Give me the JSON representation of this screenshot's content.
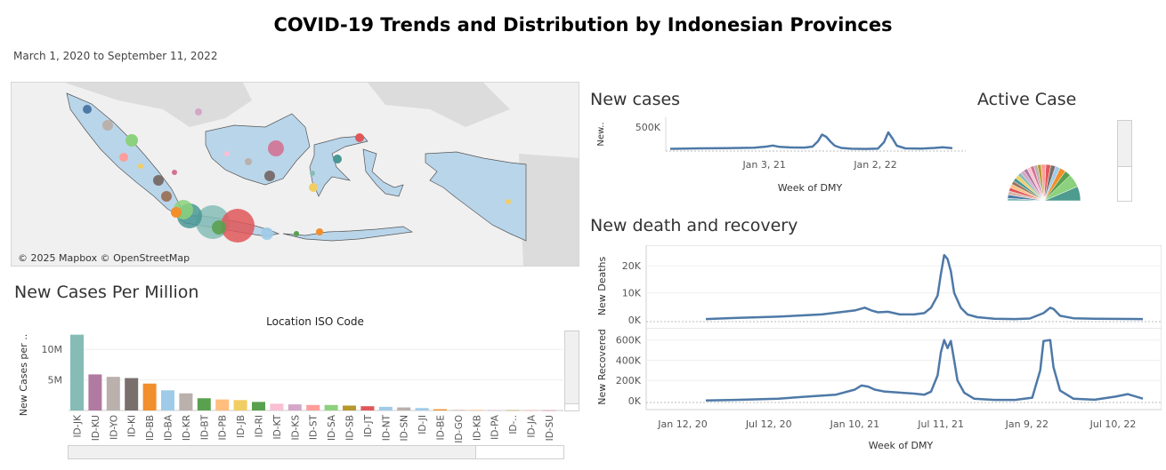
{
  "header": {
    "title": "COVID-19 Trends and Distribution by Indonesian Provinces",
    "date_range": "March 1, 2020 to September 11, 2022"
  },
  "map": {
    "credit": "© 2025 Mapbox © OpenStreetMap",
    "land_color": "#b9d5ea",
    "background_color": "#e6e6e6"
  },
  "sections": {
    "new_cases": "New cases",
    "active_case": "Active Case",
    "new_death_recovery": "New death and recovery",
    "per_million": "New Cases Per Million"
  },
  "chart_data": [
    {
      "id": "new-cases-line",
      "type": "line",
      "title": "New cases",
      "xlabel": "Week of DMY",
      "ylabel": "New..",
      "ylim": [
        0,
        700000
      ],
      "yticks": [
        {
          "value": 500000,
          "label": "500K"
        }
      ],
      "xticks": [
        {
          "x": "2021-01-03",
          "label": "Jan 3, 21"
        },
        {
          "x": "2022-01-02",
          "label": "Jan 2, 22"
        }
      ],
      "color": "#4e79a7",
      "x": [
        "2020-03-01",
        "2020-06-01",
        "2020-09-01",
        "2020-12-01",
        "2021-01-10",
        "2021-01-31",
        "2021-02-21",
        "2021-04-01",
        "2021-05-15",
        "2021-06-10",
        "2021-06-28",
        "2021-07-11",
        "2021-07-25",
        "2021-08-08",
        "2021-08-22",
        "2021-09-12",
        "2021-10-15",
        "2021-12-01",
        "2022-01-10",
        "2022-01-30",
        "2022-02-13",
        "2022-02-27",
        "2022-03-13",
        "2022-04-10",
        "2022-06-01",
        "2022-07-15",
        "2022-08-10",
        "2022-09-11"
      ],
      "values": [
        10000,
        20000,
        25000,
        35000,
        60000,
        85000,
        55000,
        40000,
        38000,
        60000,
        180000,
        330000,
        280000,
        170000,
        80000,
        30000,
        12000,
        8000,
        15000,
        160000,
        380000,
        240000,
        80000,
        20000,
        15000,
        30000,
        45000,
        25000
      ]
    },
    {
      "id": "active-case-pie",
      "type": "pie",
      "title": "Active Case",
      "slices": [
        {
          "label": "ID-JK",
          "value": 12,
          "color": "#4e9b8f"
        },
        {
          "label": "ID-JB",
          "value": 11,
          "color": "#8cd17d"
        },
        {
          "label": "ID-JT",
          "value": 5,
          "color": "#59a14f"
        },
        {
          "label": "ID-JI",
          "value": 5,
          "color": "#f28e2b"
        },
        {
          "label": "ID-KT",
          "value": 4,
          "color": "#a0cbe8"
        },
        {
          "label": "ID-BA",
          "value": 4,
          "color": "#79706e"
        },
        {
          "label": "ID-KI",
          "value": 4,
          "color": "#e15759"
        },
        {
          "label": "ID-SU",
          "value": 4,
          "color": "#ff9d9a"
        },
        {
          "label": "ID-SN",
          "value": 3,
          "color": "#b6992d"
        },
        {
          "label": "ID-SB",
          "value": 3,
          "color": "#bab0ac"
        },
        {
          "label": "ID-RI",
          "value": 3,
          "color": "#d37295"
        },
        {
          "label": "ID-YO",
          "value": 3,
          "color": "#fabfd2"
        },
        {
          "label": "ID-KR",
          "value": 3,
          "color": "#b07aa1"
        },
        {
          "label": "ID-BT",
          "value": 3,
          "color": "#d4a6c8"
        },
        {
          "label": "ID-PA",
          "value": 3,
          "color": "#86bcb6"
        },
        {
          "label": "ID-KB",
          "value": 3,
          "color": "#f1ce63"
        },
        {
          "label": "ID-SS",
          "value": 3,
          "color": "#499894"
        },
        {
          "label": "ID-LA",
          "value": 3,
          "color": "#9d7660"
        },
        {
          "label": "ID-NT",
          "value": 3,
          "color": "#ffbe7d"
        },
        {
          "label": "ID-ST",
          "value": 3,
          "color": "#e15759"
        },
        {
          "label": "ID-SA",
          "value": 3,
          "color": "#d7b5a6"
        },
        {
          "label": "ID-KS",
          "value": 3,
          "color": "#4e79a7"
        },
        {
          "label": "ID-JA",
          "value": 2,
          "color": "#76b7b2"
        }
      ]
    },
    {
      "id": "new-deaths-line",
      "type": "line",
      "ylabel": "New Deaths",
      "ylim": [
        0,
        26000
      ],
      "yticks": [
        {
          "value": 0,
          "label": "0K"
        },
        {
          "value": 10000,
          "label": "10K"
        },
        {
          "value": 20000,
          "label": "20K"
        }
      ],
      "color": "#4e79a7",
      "x": [
        "2020-03-01",
        "2020-05-01",
        "2020-08-01",
        "2020-11-01",
        "2021-01-10",
        "2021-01-31",
        "2021-02-14",
        "2021-02-28",
        "2021-03-21",
        "2021-04-15",
        "2021-05-15",
        "2021-06-06",
        "2021-06-20",
        "2021-07-04",
        "2021-07-11",
        "2021-07-18",
        "2021-07-25",
        "2021-08-01",
        "2021-08-08",
        "2021-08-22",
        "2021-09-05",
        "2021-09-26",
        "2021-11-01",
        "2021-12-15",
        "2022-01-15",
        "2022-02-13",
        "2022-02-27",
        "2022-03-06",
        "2022-03-20",
        "2022-04-17",
        "2022-06-01",
        "2022-09-11"
      ],
      "values": [
        300,
        700,
        1200,
        2000,
        3500,
        4500,
        3500,
        2800,
        3000,
        2000,
        2000,
        2500,
        4500,
        9000,
        17000,
        24000,
        22500,
        18000,
        10000,
        4500,
        2000,
        1000,
        400,
        300,
        500,
        2500,
        4500,
        4000,
        1500,
        600,
        400,
        300
      ]
    },
    {
      "id": "new-recovered-line",
      "type": "line",
      "ylabel": "New Recovered",
      "xlabel": "Week of DMY",
      "ylim": [
        0,
        650000
      ],
      "yticks": [
        {
          "value": 0,
          "label": "0K"
        },
        {
          "value": 200000,
          "label": "200K"
        },
        {
          "value": 400000,
          "label": "400K"
        },
        {
          "value": 600000,
          "label": "600K"
        }
      ],
      "xticks": [
        {
          "x": "2020-01-12",
          "label": "Jan 12, 20"
        },
        {
          "x": "2020-07-12",
          "label": "Jul 12, 20"
        },
        {
          "x": "2021-01-10",
          "label": "Jan 10, 21"
        },
        {
          "x": "2021-07-11",
          "label": "Jul 11, 21"
        },
        {
          "x": "2022-01-09",
          "label": "Jan 9, 22"
        },
        {
          "x": "2022-07-10",
          "label": "Jul 10, 22"
        }
      ],
      "color": "#4e79a7",
      "x": [
        "2020-03-01",
        "2020-05-01",
        "2020-08-01",
        "2020-10-01",
        "2020-12-01",
        "2021-01-10",
        "2021-01-24",
        "2021-02-07",
        "2021-02-21",
        "2021-03-15",
        "2021-04-15",
        "2021-05-15",
        "2021-06-06",
        "2021-06-20",
        "2021-07-04",
        "2021-07-11",
        "2021-07-18",
        "2021-07-25",
        "2021-08-01",
        "2021-08-08",
        "2021-08-15",
        "2021-08-29",
        "2021-09-19",
        "2021-11-01",
        "2021-12-15",
        "2022-01-20",
        "2022-02-06",
        "2022-02-13",
        "2022-02-27",
        "2022-03-06",
        "2022-03-20",
        "2022-04-17",
        "2022-06-01",
        "2022-07-15",
        "2022-08-10",
        "2022-09-11"
      ],
      "values": [
        2000,
        8000,
        20000,
        40000,
        60000,
        110000,
        150000,
        140000,
        110000,
        90000,
        80000,
        70000,
        60000,
        90000,
        250000,
        480000,
        600000,
        520000,
        590000,
        400000,
        200000,
        80000,
        20000,
        8000,
        8000,
        30000,
        300000,
        590000,
        600000,
        330000,
        100000,
        20000,
        10000,
        40000,
        65000,
        20000
      ]
    },
    {
      "id": "new-cases-per-million-bar",
      "type": "bar",
      "title": "Location ISO Code",
      "ylabel": "New Cases per ..",
      "ylim": [
        0,
        12500000
      ],
      "yticks": [
        {
          "value": 5000000,
          "label": "5M"
        },
        {
          "value": 10000000,
          "label": "10M"
        }
      ],
      "categories": [
        "ID-JK",
        "ID-KU",
        "ID-YO",
        "ID-KI",
        "ID-BB",
        "ID-BA",
        "ID-KR",
        "ID-BT",
        "ID-PB",
        "ID-JB",
        "ID-RI",
        "ID-KT",
        "ID-KS",
        "ID-ST",
        "ID-SA",
        "ID-SB",
        "ID-JT",
        "ID-NT",
        "ID-SN",
        "ID-JI",
        "ID-BE",
        "ID-GO",
        "ID-KB",
        "ID-PA",
        "ID-..",
        "ID-JA",
        "ID-SU",
        "ID-.."
      ],
      "values": [
        12400000,
        5900000,
        5500000,
        5300000,
        4400000,
        3300000,
        2800000,
        2000000,
        1800000,
        1700000,
        1400000,
        1100000,
        1000000,
        900000,
        900000,
        800000,
        700000,
        600000,
        500000,
        400000,
        200000,
        100000,
        100000,
        50000,
        40000,
        30000,
        20000,
        10000
      ],
      "colors": [
        "#86bcb6",
        "#b07aa1",
        "#bab0ac",
        "#79706e",
        "#f28e2b",
        "#a0cbe8",
        "#bab0ac",
        "#59a14f",
        "#ffbe7d",
        "#f1ce63",
        "#59a14f",
        "#fabfd2",
        "#d4a6c8",
        "#ff9d9a",
        "#8cd17d",
        "#b6992d",
        "#e15759",
        "#a0cbe8",
        "#bab0ac",
        "#a0cbe8",
        "#f28e2b",
        "#d7b5a6",
        "#ffbe7d",
        "#d4a6c8",
        "#b6992d",
        "#ff9d9a",
        "#d37295",
        "#d7b5a6"
      ]
    }
  ]
}
